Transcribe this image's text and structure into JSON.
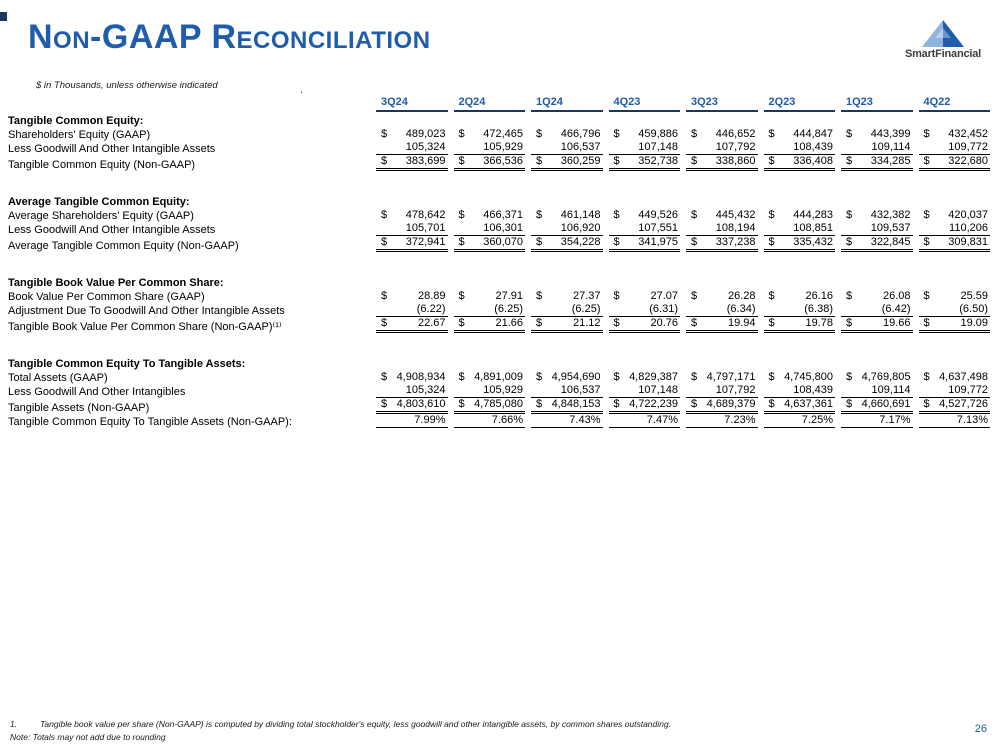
{
  "slide": {
    "title": "Non-GAAP Reconciliation",
    "subtitle": "$ in Thousands, unless otherwise indicated",
    "logo_text": "SmartFinancial",
    "page_number": "26",
    "accent_color": "#1F5CA9",
    "header_underline_color": "#17375E"
  },
  "table": {
    "columns": [
      "3Q24",
      "2Q24",
      "1Q24",
      "4Q23",
      "3Q23",
      "2Q23",
      "1Q23",
      "4Q22"
    ],
    "sections": [
      {
        "heading": "Tangible Common Equity:",
        "rows": [
          {
            "label": "Shareholders' Equity (GAAP)",
            "dollar": true,
            "style": "normal",
            "values": [
              "489,023",
              "472,465",
              "466,796",
              "459,886",
              "446,652",
              "444,847",
              "443,399",
              "432,452"
            ]
          },
          {
            "label": "Less Goodwill And Other Intangible Assets",
            "dollar": false,
            "style": "subtract",
            "values": [
              "105,324",
              "105,929",
              "106,537",
              "107,148",
              "107,792",
              "108,439",
              "109,114",
              "109,772"
            ]
          },
          {
            "label": "Tangible Common Equity (Non-GAAP)",
            "dollar": true,
            "style": "total",
            "values": [
              "383,699",
              "366,536",
              "360,259",
              "352,738",
              "338,860",
              "336,408",
              "334,285",
              "322,680"
            ]
          }
        ]
      },
      {
        "heading": "Average Tangible Common Equity:",
        "rows": [
          {
            "label": "Average Shareholders' Equity (GAAP)",
            "dollar": true,
            "style": "normal",
            "values": [
              "478,642",
              "466,371",
              "461,148",
              "449,526",
              "445,432",
              "444,283",
              "432,382",
              "420,037"
            ]
          },
          {
            "label": "Less Goodwill And Other Intangible Assets",
            "dollar": false,
            "style": "subtract",
            "values": [
              "105,701",
              "106,301",
              "106,920",
              "107,551",
              "108,194",
              "108,851",
              "109,537",
              "110,206"
            ]
          },
          {
            "label": "Average Tangible Common Equity (Non-GAAP)",
            "dollar": true,
            "style": "total",
            "values": [
              "372,941",
              "360,070",
              "354,228",
              "341,975",
              "337,238",
              "335,432",
              "322,845",
              "309,831"
            ]
          }
        ]
      },
      {
        "heading": "Tangible Book Value Per Common Share:",
        "rows": [
          {
            "label": "Book Value Per Common Share (GAAP)",
            "dollar": true,
            "style": "normal",
            "values": [
              "28.89",
              "27.91",
              "27.37",
              "27.07",
              "26.28",
              "26.16",
              "26.08",
              "25.59"
            ]
          },
          {
            "label": "Adjustment Due To Goodwill And Other Intangible Assets",
            "dollar": false,
            "style": "subtract",
            "values": [
              "(6.22)",
              "(6.25)",
              "(6.25)",
              "(6.31)",
              "(6.34)",
              "(6.38)",
              "(6.42)",
              "(6.50)"
            ]
          },
          {
            "label": "Tangible Book Value Per Common Share (Non-GAAP)⁽¹⁾",
            "dollar": true,
            "style": "total",
            "values": [
              "22.67",
              "21.66",
              "21.12",
              "20.76",
              "19.94",
              "19.78",
              "19.66",
              "19.09"
            ]
          }
        ]
      },
      {
        "heading": "Tangible Common Equity To Tangible Assets:",
        "rows": [
          {
            "label": "Total Assets (GAAP)",
            "dollar": true,
            "style": "normal",
            "values": [
              "4,908,934",
              "4,891,009",
              "4,954,690",
              "4,829,387",
              "4,797,171",
              "4,745,800",
              "4,769,805",
              "4,637,498"
            ]
          },
          {
            "label": "Less Goodwill And Other Intangibles",
            "dollar": false,
            "style": "subtract",
            "values": [
              "105,324",
              "105,929",
              "106,537",
              "107,148",
              "107,792",
              "108,439",
              "109,114",
              "109,772"
            ]
          },
          {
            "label": "Tangible Assets (Non-GAAP)",
            "dollar": true,
            "style": "total",
            "values": [
              "4,803,610",
              "4,785,080",
              "4,848,153",
              "4,722,239",
              "4,689,379",
              "4,637,361",
              "4,660,691",
              "4,527,726"
            ]
          },
          {
            "label": "Tangible Common Equity To Tangible Assets (Non-GAAP):",
            "dollar": false,
            "style": "percent",
            "values": [
              "7.99%",
              "7.66%",
              "7.43%",
              "7.47%",
              "7.23%",
              "7.25%",
              "7.17%",
              "7.13%"
            ]
          }
        ]
      }
    ]
  },
  "footnotes": {
    "marker1": "1.",
    "note1": "Tangible book value per share (Non-GAAP) is computed by dividing total stockholder's equity, less goodwill and other intangible assets, by common shares outstanding.",
    "note2": "Note: Totals may not add due to rounding"
  }
}
